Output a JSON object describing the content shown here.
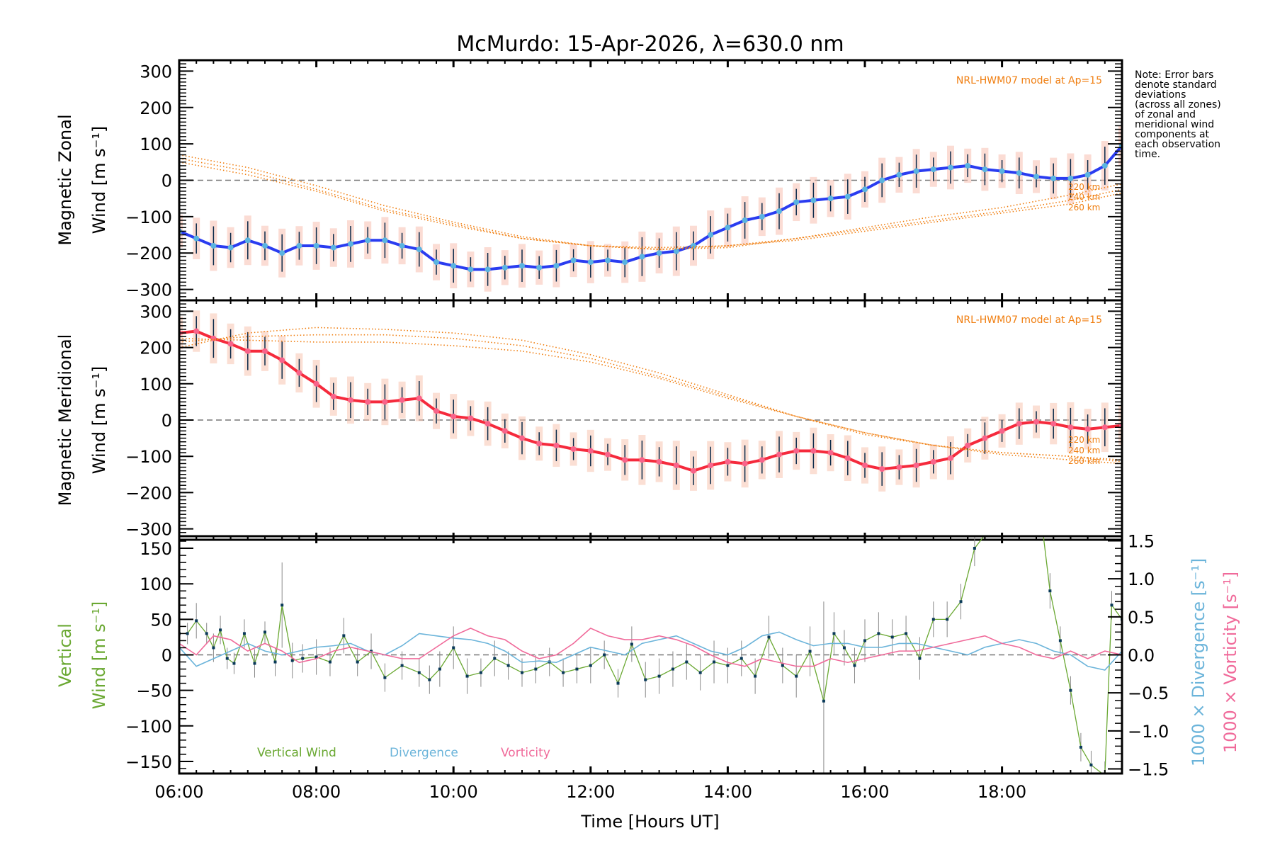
{
  "chart_data": [
    {
      "type": "line",
      "panel": "zonal",
      "title": "McMurdo: 15-Apr-2026, λ=630.0 nm",
      "ylabel_line1": "Magnetic Zonal",
      "ylabel_line2": "Wind [m s⁻¹]",
      "xlim": [
        6.0,
        19.75
      ],
      "ylim": [
        -330,
        330
      ],
      "yticks": [
        300,
        200,
        100,
        0,
        -100,
        -200,
        -300
      ],
      "ytick_labels": [
        "300",
        "200",
        "100",
        "0",
        "−100",
        "−200",
        "−300"
      ],
      "zero_line": true,
      "model_label": "NRL-HWM07 model at Ap=15",
      "model_altitudes": [
        "220 km",
        "240 km",
        "260 km"
      ],
      "series": [
        {
          "name": "Zonal wind (mean)",
          "color": "#2a3cf0",
          "x": [
            6.0,
            6.25,
            6.5,
            6.75,
            7.0,
            7.25,
            7.5,
            7.75,
            8.0,
            8.25,
            8.5,
            8.75,
            9.0,
            9.25,
            9.5,
            9.75,
            10.0,
            10.25,
            10.5,
            10.75,
            11.0,
            11.25,
            11.5,
            11.75,
            12.0,
            12.25,
            12.5,
            12.75,
            13.0,
            13.25,
            13.5,
            13.75,
            14.0,
            14.25,
            14.5,
            14.75,
            15.0,
            15.25,
            15.5,
            15.75,
            16.0,
            16.25,
            16.5,
            16.75,
            17.0,
            17.25,
            17.5,
            17.75,
            18.0,
            18.25,
            18.5,
            18.75,
            19.0,
            19.25,
            19.5,
            19.75
          ],
          "values": [
            -140,
            -160,
            -180,
            -185,
            -165,
            -180,
            -200,
            -180,
            -180,
            -185,
            -175,
            -165,
            -165,
            -180,
            -190,
            -225,
            -235,
            -245,
            -245,
            -240,
            -235,
            -240,
            -235,
            -220,
            -225,
            -220,
            -225,
            -210,
            -200,
            -195,
            -180,
            -150,
            -130,
            -110,
            -100,
            -85,
            -60,
            -55,
            -50,
            -45,
            -25,
            0,
            15,
            25,
            30,
            35,
            40,
            30,
            25,
            20,
            10,
            5,
            5,
            15,
            40,
            95
          ]
        },
        {
          "name": "HWM07 220 km",
          "color": "#f07e10",
          "x": [
            6,
            7,
            8,
            9,
            10,
            11,
            12,
            13,
            14,
            15,
            16,
            17,
            18,
            19,
            19.75
          ],
          "values": [
            70,
            35,
            -15,
            -70,
            -115,
            -155,
            -180,
            -190,
            -185,
            -160,
            -130,
            -100,
            -75,
            -40,
            -10
          ]
        },
        {
          "name": "HWM07 240 km",
          "color": "#f07e10",
          "x": [
            6,
            7,
            8,
            9,
            10,
            11,
            12,
            13,
            14,
            15,
            16,
            17,
            18,
            19,
            19.75
          ],
          "values": [
            60,
            25,
            -25,
            -80,
            -120,
            -160,
            -180,
            -190,
            -180,
            -160,
            -135,
            -110,
            -85,
            -55,
            -25
          ]
        },
        {
          "name": "HWM07 260 km",
          "color": "#f07e10",
          "x": [
            6,
            7,
            8,
            9,
            10,
            11,
            12,
            13,
            14,
            15,
            16,
            17,
            18,
            19,
            19.75
          ],
          "values": [
            50,
            15,
            -30,
            -85,
            -125,
            -160,
            -180,
            -185,
            -180,
            -165,
            -140,
            -115,
            -90,
            -65,
            -35
          ]
        }
      ]
    },
    {
      "type": "line",
      "panel": "meridional",
      "ylabel_line1": "Magnetic Meridional",
      "ylabel_line2": "Wind [m s⁻¹]",
      "xlim": [
        6.0,
        19.75
      ],
      "ylim": [
        -330,
        330
      ],
      "yticks": [
        300,
        200,
        100,
        0,
        -100,
        -200,
        -300
      ],
      "ytick_labels": [
        "300",
        "200",
        "100",
        "0",
        "−100",
        "−200",
        "−300"
      ],
      "zero_line": true,
      "model_label": "NRL-HWM07 model at Ap=15",
      "model_altitudes": [
        "220 km",
        "240 km",
        "260 km"
      ],
      "series": [
        {
          "name": "Meridional wind (mean)",
          "color": "#f52a3c",
          "x": [
            6.0,
            6.25,
            6.5,
            6.75,
            7.0,
            7.25,
            7.5,
            7.75,
            8.0,
            8.25,
            8.5,
            8.75,
            9.0,
            9.25,
            9.5,
            9.75,
            10.0,
            10.25,
            10.5,
            10.75,
            11.0,
            11.25,
            11.5,
            11.75,
            12.0,
            12.25,
            12.5,
            12.75,
            13.0,
            13.25,
            13.5,
            13.75,
            14.0,
            14.25,
            14.5,
            14.75,
            15.0,
            15.25,
            15.5,
            15.75,
            16.0,
            16.25,
            16.5,
            16.75,
            17.0,
            17.25,
            17.5,
            17.75,
            18.0,
            18.25,
            18.5,
            18.75,
            19.0,
            19.25,
            19.5,
            19.75
          ],
          "values": [
            240,
            245,
            225,
            210,
            190,
            190,
            165,
            130,
            100,
            65,
            55,
            50,
            50,
            55,
            60,
            25,
            10,
            5,
            -10,
            -30,
            -50,
            -65,
            -70,
            -80,
            -85,
            -95,
            -110,
            -110,
            -115,
            -125,
            -140,
            -125,
            -115,
            -120,
            -110,
            -95,
            -85,
            -85,
            -90,
            -105,
            -125,
            -135,
            -130,
            -125,
            -115,
            -105,
            -70,
            -50,
            -30,
            -10,
            -5,
            -10,
            -20,
            -25,
            -20,
            -15
          ]
        },
        {
          "name": "HWM07 220 km",
          "color": "#f07e10",
          "x": [
            6,
            7,
            8,
            9,
            10,
            11,
            12,
            13,
            14,
            15,
            16,
            17,
            18,
            19,
            19.75
          ],
          "values": [
            200,
            240,
            255,
            250,
            240,
            220,
            180,
            130,
            70,
            10,
            -40,
            -70,
            -90,
            -100,
            -110
          ]
        },
        {
          "name": "HWM07 240 km",
          "color": "#f07e10",
          "x": [
            6,
            7,
            8,
            9,
            10,
            11,
            12,
            13,
            14,
            15,
            16,
            17,
            18,
            19,
            19.75
          ],
          "values": [
            215,
            230,
            235,
            235,
            225,
            205,
            170,
            120,
            65,
            10,
            -35,
            -70,
            -90,
            -100,
            -115
          ]
        },
        {
          "name": "HWM07 260 km",
          "color": "#f07e10",
          "x": [
            6,
            7,
            8,
            9,
            10,
            11,
            12,
            13,
            14,
            15,
            16,
            17,
            18,
            19,
            19.75
          ],
          "values": [
            225,
            220,
            215,
            215,
            205,
            190,
            160,
            115,
            60,
            10,
            -35,
            -70,
            -95,
            -110,
            -120
          ]
        }
      ]
    },
    {
      "type": "line",
      "panel": "vertical",
      "ylabel_line1": "Vertical",
      "ylabel_line2": "Wind [m s⁻¹]",
      "ylabel_right_1": "1000 × Divergence [s⁻¹]",
      "ylabel_right_2": "1000 × Vorticity [s⁻¹]",
      "xlabel": "Time [Hours UT]",
      "xlim": [
        6.0,
        19.75
      ],
      "xticks": [
        6,
        8,
        10,
        12,
        14,
        16,
        18
      ],
      "xtick_labels": [
        "06:00",
        "08:00",
        "10:00",
        "12:00",
        "14:00",
        "16:00",
        "18:00"
      ],
      "ylim": [
        -167,
        167
      ],
      "yticks": [
        150,
        100,
        50,
        0,
        -50,
        -100,
        -150
      ],
      "ytick_labels": [
        "150",
        "100",
        "50",
        "0",
        "−50",
        "−100",
        "−150"
      ],
      "ylim_right": [
        -1.56,
        1.56
      ],
      "yticks_right": [
        1.5,
        1.0,
        0.5,
        0.0,
        -0.5,
        -1.0,
        -1.5
      ],
      "ytick_labels_right": [
        "1.5",
        "1.0",
        "0.5",
        "0.0",
        "−0.5",
        "−1.0",
        "−1.5"
      ],
      "zero_line": true,
      "legend": [
        "Vertical Wind",
        "Divergence",
        "Vorticity"
      ],
      "legend_placement": "bottom-left",
      "series": [
        {
          "name": "Vertical Wind",
          "color": "#6aa832",
          "axis": "left",
          "x": [
            6.0,
            6.12,
            6.25,
            6.4,
            6.5,
            6.6,
            6.7,
            6.8,
            6.95,
            7.1,
            7.25,
            7.4,
            7.5,
            7.65,
            7.8,
            8.0,
            8.2,
            8.4,
            8.6,
            8.8,
            9.0,
            9.25,
            9.5,
            9.65,
            9.8,
            10.0,
            10.2,
            10.4,
            10.6,
            10.8,
            11.0,
            11.2,
            11.4,
            11.6,
            11.8,
            12.0,
            12.2,
            12.4,
            12.6,
            12.8,
            13.0,
            13.2,
            13.4,
            13.6,
            13.8,
            14.0,
            14.2,
            14.4,
            14.6,
            14.8,
            15.0,
            15.2,
            15.4,
            15.55,
            15.7,
            15.85,
            16.0,
            16.2,
            16.4,
            16.6,
            16.8,
            17.0,
            17.2,
            17.4,
            17.6,
            18.0,
            18.5,
            18.7,
            18.85,
            19.0,
            19.15,
            19.3,
            19.5,
            19.6,
            19.75
          ],
          "values": [
            30,
            30,
            48,
            30,
            10,
            35,
            -5,
            -12,
            30,
            -12,
            32,
            -10,
            70,
            -8,
            -5,
            -3,
            -10,
            27,
            -10,
            5,
            -32,
            -15,
            -25,
            -35,
            -20,
            10,
            -30,
            -25,
            -5,
            -15,
            -25,
            -20,
            -10,
            -25,
            -20,
            -15,
            0,
            -40,
            15,
            -35,
            -30,
            -20,
            -10,
            -25,
            -10,
            -15,
            -5,
            -30,
            25,
            -15,
            -30,
            5,
            -65,
            30,
            10,
            -15,
            20,
            30,
            25,
            30,
            -5,
            50,
            50,
            75,
            150,
            200,
            250,
            90,
            20,
            -50,
            -130,
            -155,
            -170,
            70,
            50
          ],
          "errors": [
            20,
            15,
            25,
            15,
            20,
            20,
            15,
            15,
            20,
            20,
            15,
            20,
            60,
            25,
            20,
            25,
            20,
            25,
            20,
            25,
            20,
            20,
            20,
            20,
            25,
            30,
            25,
            20,
            25,
            20,
            20,
            20,
            20,
            20,
            20,
            25,
            20,
            20,
            25,
            25,
            25,
            25,
            25,
            25,
            30,
            25,
            25,
            25,
            30,
            25,
            30,
            35,
            140,
            30,
            25,
            25,
            30,
            30,
            25,
            25,
            30,
            25,
            25,
            25,
            25,
            25,
            25,
            25,
            20,
            20,
            20,
            20,
            20,
            20,
            20
          ]
        },
        {
          "name": "Divergence",
          "color": "#6bb4da",
          "axis": "right",
          "x": [
            6.0,
            6.25,
            6.5,
            6.75,
            7.0,
            7.25,
            7.5,
            7.75,
            8.0,
            8.25,
            8.5,
            8.75,
            9.0,
            9.25,
            9.5,
            9.75,
            10.0,
            10.25,
            10.5,
            10.75,
            11.0,
            11.25,
            11.5,
            11.75,
            12.0,
            12.25,
            12.5,
            12.75,
            13.0,
            13.25,
            13.5,
            13.75,
            14.0,
            14.25,
            14.5,
            14.75,
            15.0,
            15.25,
            15.5,
            15.75,
            16.0,
            16.25,
            16.5,
            16.75,
            17.0,
            17.25,
            17.5,
            17.75,
            18.0,
            18.25,
            18.5,
            18.75,
            19.0,
            19.25,
            19.5,
            19.75
          ],
          "values": [
            0.1,
            -0.15,
            -0.05,
            0.05,
            0.15,
            0.05,
            0.0,
            0.05,
            0.1,
            0.12,
            0.15,
            0.05,
            0.0,
            0.12,
            0.28,
            0.25,
            0.22,
            0.2,
            0.15,
            0.05,
            -0.1,
            -0.08,
            -0.1,
            0.0,
            0.1,
            0.05,
            0.0,
            0.15,
            0.2,
            0.25,
            0.15,
            0.05,
            0.0,
            0.1,
            0.25,
            0.3,
            0.2,
            0.12,
            0.15,
            0.15,
            0.1,
            0.1,
            0.15,
            0.15,
            0.1,
            0.05,
            0.0,
            0.1,
            0.15,
            0.2,
            0.15,
            0.05,
            0.0,
            -0.15,
            -0.2,
            0.05
          ],
          "range_note": "values in 1000 × s⁻¹"
        },
        {
          "name": "Vorticity",
          "color": "#f06a9a",
          "axis": "right",
          "x": [
            6.0,
            6.25,
            6.5,
            6.75,
            7.0,
            7.25,
            7.5,
            7.75,
            8.0,
            8.25,
            8.5,
            8.75,
            9.0,
            9.25,
            9.5,
            9.75,
            10.0,
            10.25,
            10.5,
            10.75,
            11.0,
            11.25,
            11.5,
            11.75,
            12.0,
            12.25,
            12.5,
            12.75,
            13.0,
            13.25,
            13.5,
            13.75,
            14.0,
            14.25,
            14.5,
            14.75,
            15.0,
            15.25,
            15.5,
            15.75,
            16.0,
            16.25,
            16.5,
            16.75,
            17.0,
            17.25,
            17.5,
            17.75,
            18.0,
            18.25,
            18.5,
            18.75,
            19.0,
            19.25,
            19.5,
            19.75
          ],
          "values": [
            0.15,
            0.0,
            0.25,
            0.2,
            0.05,
            0.15,
            0.05,
            -0.1,
            -0.05,
            0.05,
            0.1,
            0.05,
            0.0,
            -0.05,
            -0.05,
            0.1,
            0.25,
            0.35,
            0.25,
            0.2,
            0.05,
            -0.05,
            0.0,
            0.15,
            0.35,
            0.25,
            0.2,
            0.2,
            0.25,
            0.2,
            0.12,
            0.0,
            -0.1,
            -0.15,
            -0.05,
            -0.1,
            -0.15,
            -0.15,
            -0.05,
            -0.1,
            -0.05,
            0.0,
            0.05,
            0.05,
            0.1,
            0.15,
            0.2,
            0.25,
            0.15,
            0.1,
            0.0,
            -0.05,
            0.05,
            -0.05,
            0.05,
            0.0
          ]
        }
      ]
    }
  ],
  "note": {
    "lines": [
      "Note: Error bars",
      "denote standard",
      "deviations",
      "(across all zones)",
      "of zonal and",
      "meridional wind",
      "components at",
      "each observation",
      "time."
    ]
  },
  "colors": {
    "model": "#f07e10",
    "zonal": "#2a3cf0",
    "zonal_marker": "#5ab4e0",
    "meridional": "#f52a3c",
    "meridional_marker": "#f8648a",
    "vertical": "#6aa832",
    "divergence": "#6bb4da",
    "vorticity": "#f06a9a",
    "vert_marker": "#0a3a5a",
    "error_bar": "#888888"
  }
}
